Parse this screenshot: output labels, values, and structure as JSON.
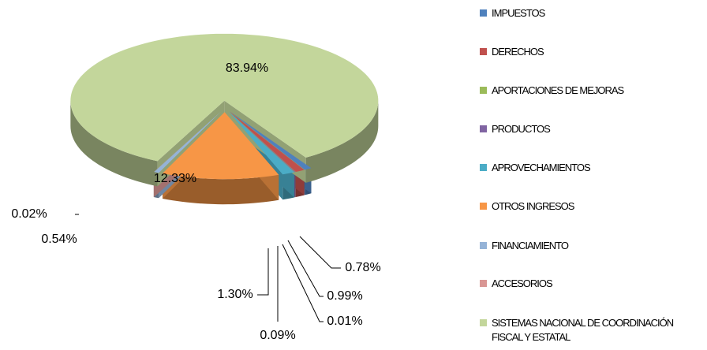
{
  "chart_data": {
    "type": "pie",
    "categories": [
      "IMPUESTOS",
      "DERECHOS",
      "APORTACIONES DE MEJORAS",
      "PRODUCTOS",
      "APROVECHAMIENTOS",
      "OTROS INGRESOS",
      "FINANCIAMIENTO",
      "ACCESORIOS",
      "SISTEMAS NACIONAL DE COORDINACIÓN FISCAL Y ESTATAL"
    ],
    "values": [
      0.78,
      0.99,
      0.01,
      0.09,
      1.3,
      12.33,
      0.54,
      0.02,
      83.94
    ],
    "value_labels": [
      "0.78%",
      "0.99%",
      "0.01%",
      "0.09%",
      "1.30%",
      "12.33%",
      "0.54%",
      "0.02%",
      "83.94%"
    ],
    "colors": [
      "#4f81bd",
      "#c0504d",
      "#9bbb59",
      "#8064a2",
      "#4bacc6",
      "#f79646",
      "#95b3d7",
      "#d99694",
      "#c3d69b"
    ],
    "legend": "right"
  }
}
